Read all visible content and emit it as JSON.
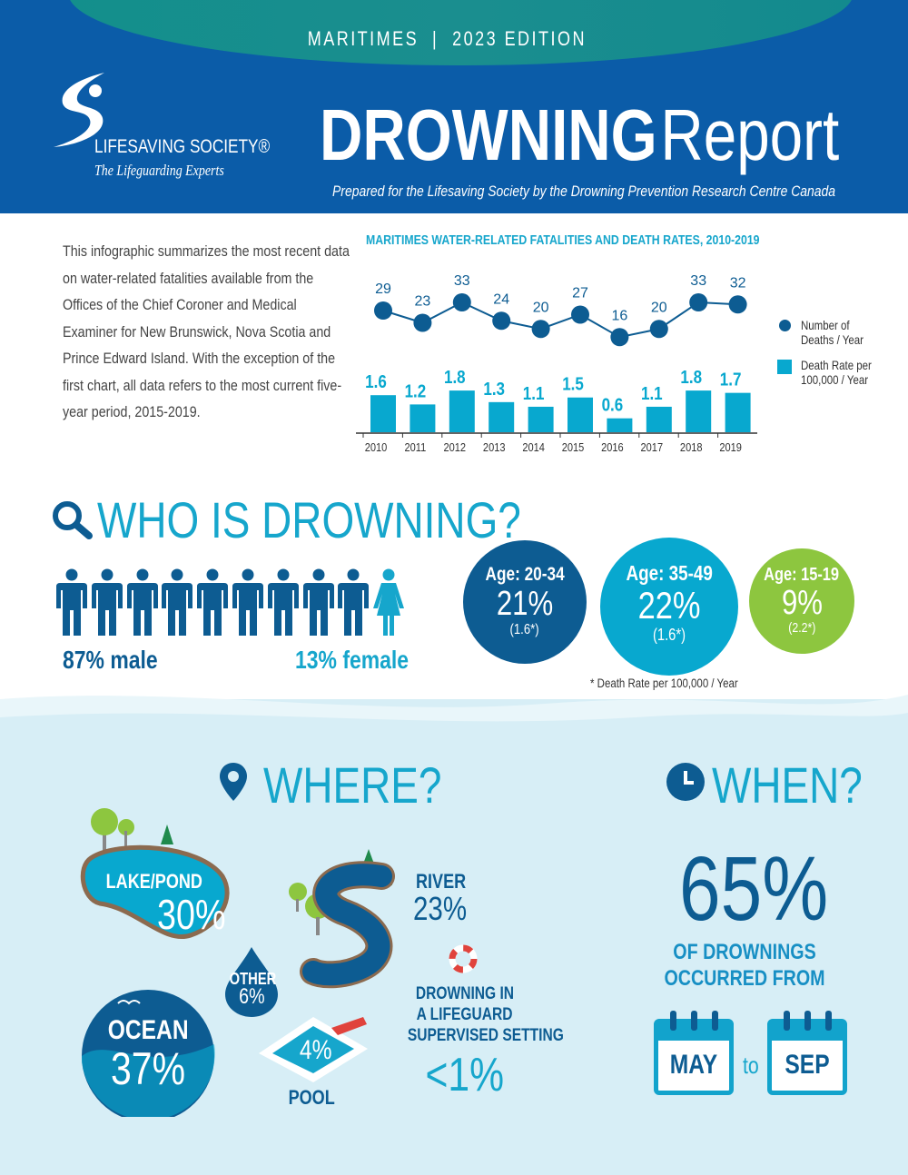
{
  "header": {
    "edition": "MARITIMES  |  2023 EDITION",
    "logo_name": "LIFESAVING SOCIETY®",
    "logo_tagline": "The Lifeguarding Experts",
    "title_bold": "DROWNING",
    "title_light": "Report",
    "subtitle": "Prepared for the Lifesaving Society by the Drowning Prevention Research Centre Canada"
  },
  "intro": "This infographic summarizes the most recent data on water-related fatalities available from the Offices of the Chief Coroner and Medical Examiner for New Brunswick, Nova Scotia and Prince Edward Island. With the exception of the first chart, all data refers to the most current five-year period, 2015-2019.",
  "chart_data": {
    "type": "bar+line",
    "title": "MARITIMES WATER-RELATED FATALITIES AND DEATH RATES, 2010-2019",
    "categories": [
      "2010",
      "2011",
      "2012",
      "2013",
      "2014",
      "2015",
      "2016",
      "2017",
      "2018",
      "2019"
    ],
    "series": [
      {
        "name": "Number of Deaths / Year",
        "type": "line",
        "values": [
          29,
          23,
          33,
          24,
          20,
          27,
          16,
          20,
          33,
          32
        ],
        "color": "#0d5c92"
      },
      {
        "name": "Death Rate per 100,000 / Year",
        "type": "bar",
        "values": [
          1.6,
          1.2,
          1.8,
          1.3,
          1.1,
          1.5,
          0.6,
          1.1,
          1.8,
          1.7
        ],
        "color": "#08a8cf"
      }
    ],
    "legend_placement": "right",
    "grid": false
  },
  "who": {
    "heading": "WHO IS DROWNING?",
    "male": "87% male",
    "female": "13% female",
    "male_share": 87,
    "female_share": 13,
    "ages": [
      {
        "label": "Age: 20-34",
        "pct": "21%",
        "rate": "(1.6*)",
        "color": "#0d5c92"
      },
      {
        "label": "Age: 35-49",
        "pct": "22%",
        "rate": "(1.6*)",
        "color": "#08a8cf"
      },
      {
        "label": "Age: 15-19",
        "pct": "9%",
        "rate": "(2.2*)",
        "color": "#8dc63f"
      }
    ],
    "footnote": "* Death Rate per 100,000 / Year"
  },
  "where": {
    "heading": "WHERE?",
    "lake_label": "LAKE/POND",
    "lake_pct": "30%",
    "river_label": "RIVER",
    "river_pct": "23%",
    "other_label": "OTHER",
    "other_pct": "6%",
    "ocean_label": "OCEAN",
    "ocean_pct": "37%",
    "pool_label": "POOL",
    "pool_pct": "4%",
    "lifeguard_lines": [
      "DROWNING IN",
      "A LIFEGUARD",
      "SUPERVISED SETTING"
    ],
    "lifeguard_pct": "<1%"
  },
  "when": {
    "heading": "WHEN?",
    "pct": "65%",
    "line1": "OF DROWNINGS",
    "line2": "OCCURRED FROM",
    "from": "MAY",
    "to_word": "to",
    "to": "SEP"
  },
  "colors": {
    "dark_blue": "#0d5c92",
    "teal": "#08a8cf",
    "green": "#8dc63f",
    "header": "#0b5ca8",
    "bg_light": "#d7eef6"
  }
}
